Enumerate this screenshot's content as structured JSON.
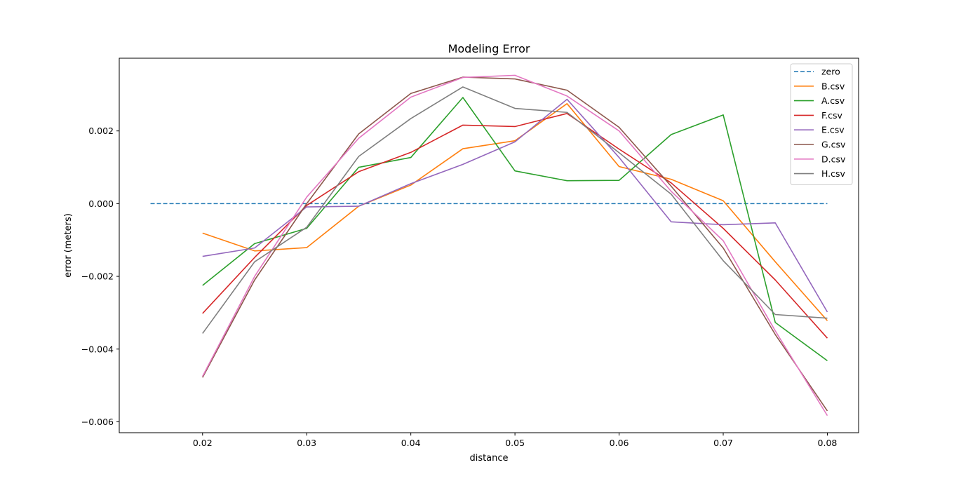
{
  "chart_data": {
    "type": "line",
    "title": "Modeling Error",
    "xlabel": "distance",
    "ylabel": "error (meters)",
    "xlim": [
      0.012,
      0.083
    ],
    "ylim": [
      -0.0063,
      0.004
    ],
    "xticks": [
      0.02,
      0.03,
      0.04,
      0.05,
      0.06,
      0.07,
      0.08
    ],
    "xtick_labels": [
      "0.02",
      "0.03",
      "0.04",
      "0.05",
      "0.06",
      "0.07",
      "0.08"
    ],
    "yticks": [
      0.002,
      0.0,
      -0.002,
      -0.004,
      -0.006
    ],
    "ytick_labels": [
      "0.002",
      "0.000",
      "−0.002",
      "−0.004",
      "−0.006"
    ],
    "grid": false,
    "legend_position": "top-right",
    "x": [
      0.02,
      0.025,
      0.03,
      0.035,
      0.04,
      0.045,
      0.05,
      0.055,
      0.06,
      0.065,
      0.07,
      0.075,
      0.08
    ],
    "series": [
      {
        "name": "zero",
        "color": "#1f77b4",
        "dashed": true,
        "x": [
          0.015,
          0.08
        ],
        "values": [
          0.0,
          0.0
        ]
      },
      {
        "name": "B.csv",
        "color": "#ff7f0e",
        "dashed": false,
        "values": [
          -0.00081,
          -0.0013,
          -0.00121,
          -7e-05,
          0.00051,
          0.00151,
          0.00173,
          0.00275,
          0.00102,
          0.00067,
          8e-05,
          -0.0016,
          -0.00322
        ]
      },
      {
        "name": "A.csv",
        "color": "#2ca02c",
        "dashed": false,
        "values": [
          -0.00225,
          -0.0011,
          -0.00068,
          0.001,
          0.00127,
          0.00292,
          0.0009,
          0.00063,
          0.00064,
          0.0019,
          0.00244,
          -0.00327,
          -0.00432
        ]
      },
      {
        "name": "F.csv",
        "color": "#d62728",
        "dashed": false,
        "values": [
          -0.00302,
          -0.00148,
          -5e-05,
          0.00088,
          0.00141,
          0.00216,
          0.00212,
          0.00248,
          0.0015,
          0.00057,
          -0.00068,
          -0.0021,
          -0.0037
        ]
      },
      {
        "name": "E.csv",
        "color": "#9467bd",
        "dashed": false,
        "values": [
          -0.00145,
          -0.00122,
          -9e-05,
          -7e-05,
          0.00055,
          0.00108,
          0.0017,
          0.00287,
          0.00127,
          -0.0005,
          -0.00058,
          -0.00053,
          -0.00298
        ]
      },
      {
        "name": "G.csv",
        "color": "#8c564b",
        "dashed": false,
        "values": [
          -0.00478,
          -0.0021,
          0.0,
          0.00192,
          0.00303,
          0.00348,
          0.00343,
          0.00312,
          0.0021,
          0.00048,
          -0.00122,
          -0.0036,
          -0.0057
        ]
      },
      {
        "name": "D.csv",
        "color": "#e377c2",
        "dashed": false,
        "values": [
          -0.00475,
          -0.002,
          0.00018,
          0.0018,
          0.00293,
          0.00347,
          0.00353,
          0.00296,
          0.002,
          0.00034,
          -0.00102,
          -0.0035,
          -0.00583
        ]
      },
      {
        "name": "H.csv",
        "color": "#7f7f7f",
        "dashed": false,
        "values": [
          -0.00357,
          -0.0016,
          -0.00065,
          0.0013,
          0.00234,
          0.00321,
          0.00262,
          0.00251,
          0.0014,
          0.00026,
          -0.00157,
          -0.00305,
          -0.00315
        ]
      }
    ]
  }
}
